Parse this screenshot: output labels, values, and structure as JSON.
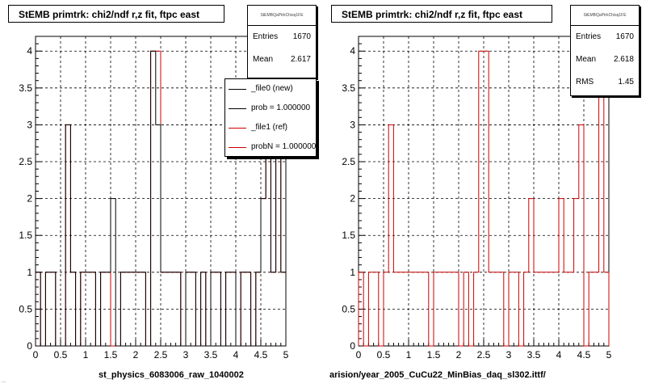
{
  "colors": {
    "new": "#000000",
    "ref": "#cc0000",
    "grid": "#000000"
  },
  "footer": "...",
  "legend": {
    "entries": [
      {
        "label": "_file0 (new)",
        "color": "#000000"
      },
      {
        "label": "prob = 1.000000",
        "color": "#000000"
      },
      {
        "label": "_file1 (ref)",
        "color": "#cc0000"
      },
      {
        "label": "probN = 1.000000",
        "color": "#cc0000"
      }
    ]
  },
  "panels": [
    {
      "title": "StEMB primtrk: chi2/ndf r,z fit, ftpc east",
      "stats": {
        "name": "StEMBQaPtrkChisq1FE",
        "rows": [
          {
            "k": "Entries",
            "v": "1670"
          },
          {
            "k": "Mean",
            "v": "2.617"
          }
        ]
      },
      "xtitle": "st_physics_6083006_raw_1040002"
    },
    {
      "title": "StEMB primtrk: chi2/ndf r,z fit, ftpc east",
      "stats": {
        "name": "StEMBQaPtrkChisq1FE",
        "rows": [
          {
            "k": "Entries",
            "v": "1670"
          },
          {
            "k": "Mean",
            "v": "2.618"
          },
          {
            "k": "RMS",
            "v": "1.45"
          }
        ]
      },
      "xtitle": "arision/year_2005_CuCu22_MinBias_daq_sl302.ittf/"
    }
  ],
  "chart_data": [
    {
      "type": "histogram",
      "title": "StEMB primtrk: chi2/ndf r,z fit, ftpc east",
      "xlabel": "st_physics_6083006_raw_1040002",
      "ylabel": "",
      "xlim": [
        0,
        5
      ],
      "ylim": [
        0,
        4.2
      ],
      "xticks": [
        "0",
        "0.5",
        "1",
        "1.5",
        "2",
        "2.5",
        "3",
        "3.5",
        "4",
        "4.5",
        "5"
      ],
      "yticks": [
        "0",
        "0.5",
        "1",
        "1.5",
        "2",
        "2.5",
        "3",
        "3.5",
        "4"
      ],
      "grid": true,
      "bins": 50,
      "series": [
        {
          "name": "_file1 (ref)",
          "color": "#cc0000",
          "values": [
            1,
            0,
            1,
            1,
            0,
            0,
            3,
            1,
            0,
            1,
            1,
            1,
            0,
            1,
            1,
            0,
            0,
            1,
            1,
            1,
            1,
            1,
            0,
            4,
            4,
            1,
            1,
            1,
            1,
            0,
            1,
            1,
            0,
            1,
            0,
            1,
            1,
            0,
            1,
            1,
            0,
            1,
            1,
            0,
            1,
            2,
            3,
            1,
            4,
            1
          ]
        },
        {
          "name": "_file0 (new)",
          "color": "#000000",
          "values": [
            1,
            0,
            1,
            1,
            0,
            0,
            3,
            1,
            0,
            1,
            1,
            1,
            0,
            1,
            1,
            2,
            0,
            1,
            1,
            1,
            1,
            1,
            0,
            4,
            3,
            1,
            1,
            1,
            1,
            0,
            1,
            1,
            0,
            1,
            0,
            1,
            1,
            0,
            1,
            1,
            0,
            1,
            1,
            0,
            1,
            2,
            3,
            1,
            4,
            1
          ]
        }
      ]
    },
    {
      "type": "histogram",
      "title": "StEMB primtrk: chi2/ndf r,z fit, ftpc east",
      "xlabel": "arision/year_2005_CuCu22_MinBias_daq_sl302.ittf/",
      "ylabel": "",
      "xlim": [
        0,
        5
      ],
      "ylim": [
        0,
        4.2
      ],
      "xticks": [
        "0",
        "0.5",
        "1",
        "1.5",
        "2",
        "2.5",
        "3",
        "3.5",
        "4",
        "4.5",
        "5"
      ],
      "yticks": [
        "0",
        "0.5",
        "1",
        "1.5",
        "2",
        "2.5",
        "3",
        "3.5",
        "4"
      ],
      "grid": true,
      "bins": 50,
      "series": [
        {
          "name": "",
          "color": "#cc0000",
          "values": [
            1,
            0,
            1,
            1,
            0,
            1,
            3,
            1,
            1,
            1,
            1,
            1,
            1,
            1,
            0,
            1,
            1,
            1,
            1,
            1,
            0,
            1,
            0,
            1,
            4,
            4,
            1,
            1,
            1,
            0,
            1,
            1,
            0,
            1,
            2,
            1,
            1,
            1,
            1,
            1,
            2,
            1,
            1,
            2,
            3,
            0,
            1,
            1,
            4,
            1
          ]
        }
      ]
    }
  ]
}
